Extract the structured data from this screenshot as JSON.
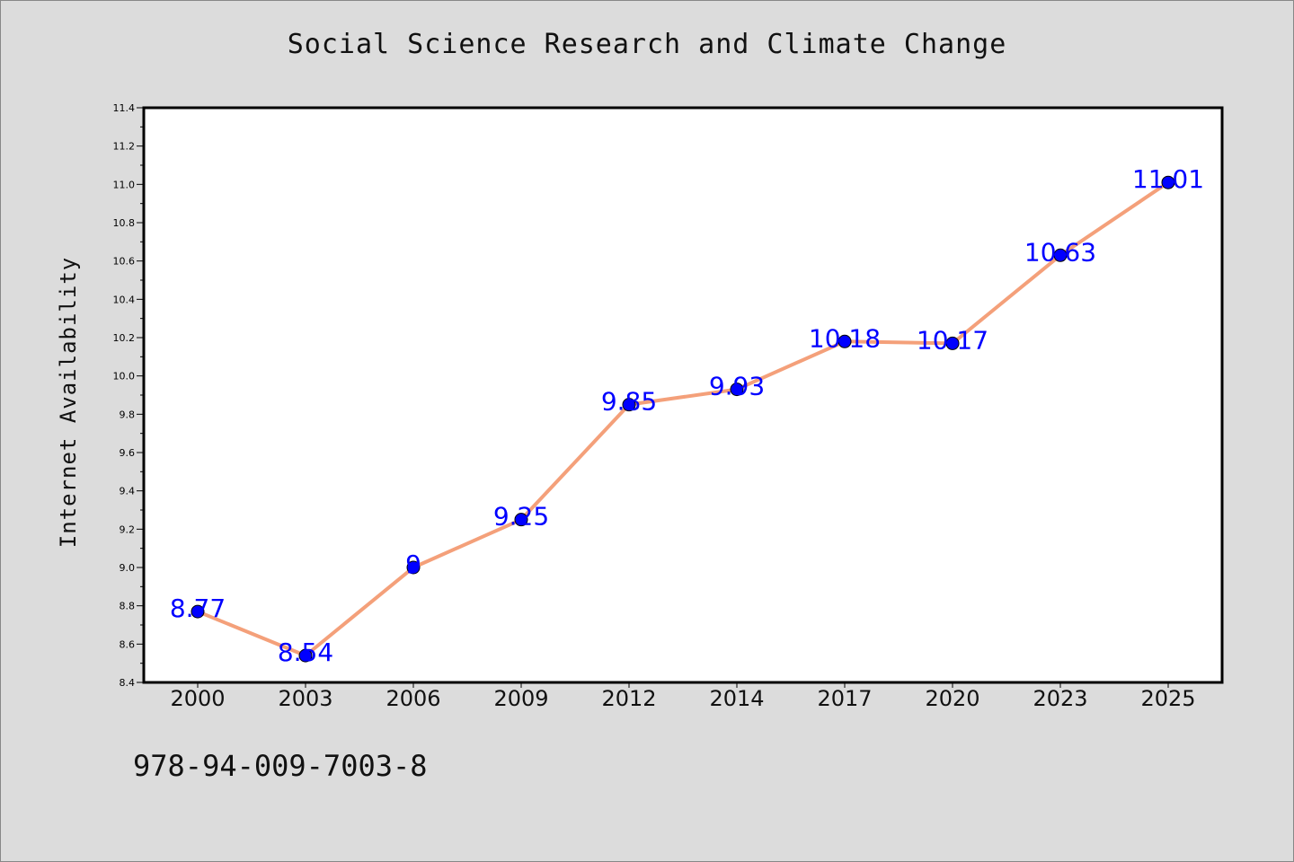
{
  "chart_data": {
    "type": "line",
    "title": "Social Science Research and Climate Change",
    "ylabel": "Internet Availability",
    "xlabel": "",
    "categories": [
      "2000",
      "2003",
      "2006",
      "2009",
      "2012",
      "2014",
      "2017",
      "2020",
      "2023",
      "2025"
    ],
    "series": [
      {
        "values": [
          8.77,
          8.54,
          9,
          9.25,
          9.85,
          9.93,
          10.18,
          10.17,
          10.63,
          11.01
        ],
        "labels": [
          "8.77",
          "8.54",
          "9",
          "9.25",
          "9.85",
          "9.93",
          "10.18",
          "10.17",
          "10.63",
          "11.01"
        ],
        "line_color": "#f4a07a",
        "marker_color": "#0000ff"
      }
    ],
    "ylim": [
      8.4,
      11.4
    ],
    "yticks": [
      "8.4",
      "8.6",
      "8.8",
      "9.0",
      "9.2",
      "9.4",
      "9.6",
      "9.8",
      "10.0",
      "10.2",
      "10.4",
      "10.6",
      "10.8",
      "11.0",
      "11.2",
      "11.4"
    ],
    "grid": false,
    "label_color": "#0000ff"
  },
  "footer": {
    "text": "978-94-009-7003-8"
  }
}
